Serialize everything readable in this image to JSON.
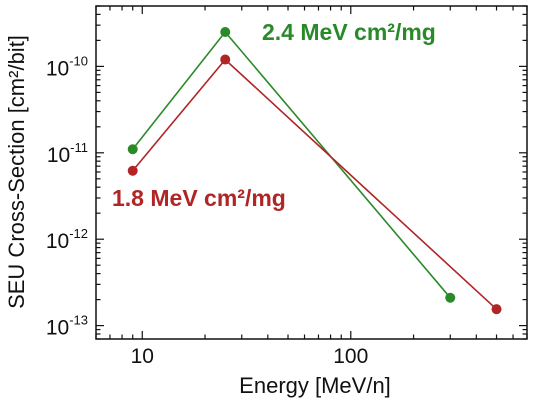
{
  "chart_data": {
    "type": "line",
    "xlabel": "Energy [MeV/n]",
    "ylabel": "SEU Cross-Section [cm²/bit]",
    "xscale": "log",
    "yscale": "log",
    "xlim": [
      6,
      700
    ],
    "ylim": [
      7e-14,
      5e-10
    ],
    "grid": false,
    "x_ticks": [
      {
        "value": 10,
        "label": "10"
      },
      {
        "value": 100,
        "label": "100"
      }
    ],
    "y_ticks": [
      {
        "value": 1e-13,
        "mantissa": "10",
        "exponent": "-13"
      },
      {
        "value": 1e-12,
        "mantissa": "10",
        "exponent": "-12"
      },
      {
        "value": 1e-11,
        "mantissa": "10",
        "exponent": "-11"
      },
      {
        "value": 1e-10,
        "mantissa": "10",
        "exponent": "-10"
      }
    ],
    "series": [
      {
        "name": "2.4 MeV cm²/mg",
        "color": "#2a8a2a",
        "x": [
          9,
          25,
          300
        ],
        "y": [
          1.1e-11,
          2.5e-10,
          2.1e-13
        ]
      },
      {
        "name": "1.8 MeV cm²/mg",
        "color": "#b02525",
        "x": [
          9,
          25,
          500
        ],
        "y": [
          6.2e-12,
          1.2e-10,
          1.55e-13
        ]
      }
    ]
  }
}
